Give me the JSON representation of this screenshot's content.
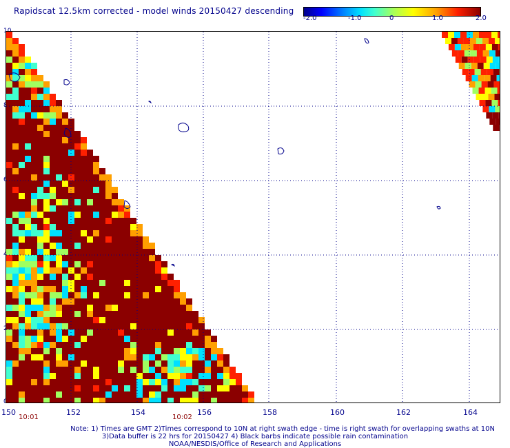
{
  "title": "Rapidscat 12.5km corrected - model winds 20150427 descending",
  "colorbar": {
    "ticks": [
      "-2.0",
      "-1.0",
      "0",
      "1.0",
      "2.0"
    ],
    "range": [
      -2.0,
      2.0
    ]
  },
  "axes": {
    "y_labels": [
      "10",
      "8",
      "6",
      "4",
      "2",
      "0"
    ],
    "x_labels": [
      "150",
      "152",
      "154",
      "156",
      "158",
      "160",
      "162",
      "164"
    ],
    "time_labels": [
      "10:01",
      "10:02"
    ]
  },
  "notes": [
    "Note: 1) Times are GMT 2)Times correspond to 10N at right swath edge - time is right swath for overlapping swaths at 10N",
    "3)Data buffer is 22 hrs for 20150427 4) Black barbs indicate possible rain contamination",
    "NOAA/NESDIS/Office of Research and Applications"
  ]
}
